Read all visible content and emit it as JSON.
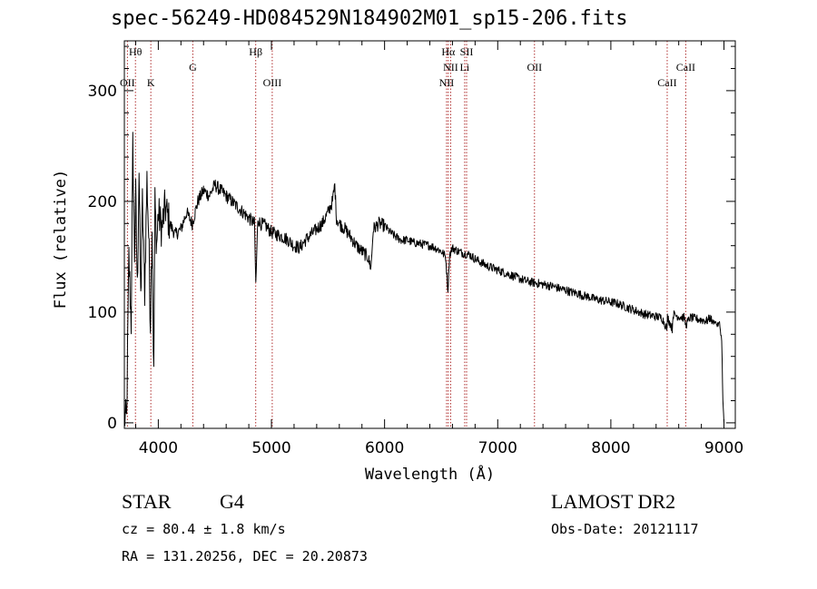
{
  "chart_data": {
    "type": "line",
    "title": "spec-56249-HD084529N184902M01_sp15-206.fits",
    "xlabel": "Wavelength (Å)",
    "ylabel": "Flux (relative)",
    "xlim": [
      3700,
      9100
    ],
    "ylim": [
      -5,
      345
    ],
    "xticks": [
      4000,
      5000,
      6000,
      7000,
      8000,
      9000
    ],
    "yticks": [
      0,
      100,
      200,
      300
    ],
    "line_color": "#000000",
    "marker_color": "#b03030",
    "series": [
      {
        "x": [
          3700,
          3720,
          3740,
          3760,
          3775,
          3790,
          3800,
          3815,
          3830,
          3845,
          3860,
          3880,
          3900,
          3915,
          3930,
          3945,
          3960,
          3970,
          3985,
          4000,
          4030,
          4060,
          4100,
          4150,
          4200,
          4250,
          4300,
          4350,
          4400,
          4450,
          4500,
          4550,
          4600,
          4650,
          4700,
          4750,
          4800,
          4850,
          4862,
          4880,
          4900,
          4950,
          5000,
          5050,
          5100,
          5150,
          5200,
          5250,
          5300,
          5350,
          5400,
          5450,
          5500,
          5540,
          5560,
          5575,
          5600,
          5650,
          5700,
          5750,
          5800,
          5850,
          5880,
          5900,
          5950,
          6000,
          6050,
          6100,
          6150,
          6200,
          6250,
          6300,
          6350,
          6400,
          6450,
          6500,
          6540,
          6560,
          6575,
          6600,
          6650,
          6700,
          6750,
          6800,
          6850,
          6900,
          6950,
          7000,
          7050,
          7100,
          7150,
          7200,
          7250,
          7300,
          7350,
          7400,
          7450,
          7500,
          7550,
          7600,
          7650,
          7700,
          7750,
          7800,
          7850,
          7900,
          7950,
          8000,
          8050,
          8100,
          8150,
          8200,
          8250,
          8300,
          8350,
          8400,
          8450,
          8498,
          8500,
          8542,
          8550,
          8600,
          8650,
          8662,
          8700,
          8750,
          8800,
          8850,
          8880,
          8900,
          8920,
          8940,
          8960,
          8980,
          8990,
          9000
        ],
        "values": [
          5,
          2,
          150,
          90,
          250,
          150,
          205,
          120,
          230,
          110,
          200,
          120,
          220,
          170,
          90,
          180,
          40,
          200,
          160,
          190,
          175,
          195,
          180,
          170,
          175,
          190,
          180,
          200,
          210,
          205,
          215,
          210,
          205,
          200,
          195,
          190,
          185,
          180,
          125,
          185,
          180,
          178,
          172,
          170,
          168,
          165,
          160,
          158,
          165,
          170,
          175,
          180,
          190,
          200,
          215,
          185,
          180,
          175,
          168,
          160,
          155,
          150,
          140,
          175,
          180,
          178,
          172,
          168,
          165,
          165,
          163,
          162,
          161,
          160,
          158,
          155,
          150,
          120,
          152,
          158,
          155,
          153,
          152,
          148,
          145,
          142,
          140,
          138,
          136,
          134,
          132,
          130,
          128,
          127,
          126,
          125,
          124,
          123,
          121,
          120,
          118,
          117,
          115,
          114,
          112,
          111,
          110,
          109,
          108,
          106,
          104,
          102,
          100,
          98,
          97,
          96,
          95,
          85,
          96,
          85,
          98,
          96,
          95,
          88,
          95,
          94,
          93,
          92,
          95,
          90,
          92,
          88,
          90,
          75,
          20,
          0
        ]
      }
    ],
    "lines": [
      {
        "wavelength": 3727,
        "label": "OII",
        "row": 3
      },
      {
        "wavelength": 3798,
        "label": "Hθ",
        "row": 1
      },
      {
        "wavelength": 3934,
        "label": "K",
        "row": 3
      },
      {
        "wavelength": 4305,
        "label": "G",
        "row": 2
      },
      {
        "wavelength": 4861,
        "label": "Hβ",
        "row": 1
      },
      {
        "wavelength": 5007,
        "label": "OIII",
        "row": 3
      },
      {
        "wavelength": 6548,
        "label": "NII",
        "row": 3
      },
      {
        "wavelength": 6563,
        "label": "Hα",
        "row": 1
      },
      {
        "wavelength": 6584,
        "label": "NII",
        "row": 2
      },
      {
        "wavelength": 6708,
        "label": "Li",
        "row": 2
      },
      {
        "wavelength": 6725,
        "label": "SII",
        "row": 1
      },
      {
        "wavelength": 7325,
        "label": "OII",
        "row": 2
      },
      {
        "wavelength": 8498,
        "label": "CaII",
        "row": 3
      },
      {
        "wavelength": 8662,
        "label": "CaII",
        "row": 2
      }
    ]
  },
  "info": {
    "class": "STAR",
    "subclass": "G4",
    "survey": "LAMOST DR2",
    "redshift": "cz = 80.4 ± 1.8 km/s",
    "obs_date": "Obs-Date: 20121117",
    "coords": "RA = 131.20256, DEC =  20.20873"
  }
}
